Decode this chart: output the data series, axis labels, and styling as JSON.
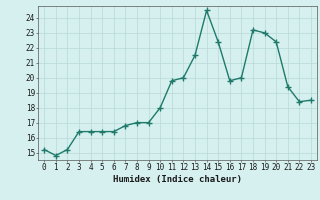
{
  "x": [
    0,
    1,
    2,
    3,
    4,
    5,
    6,
    7,
    8,
    9,
    10,
    11,
    12,
    13,
    14,
    15,
    16,
    17,
    18,
    19,
    20,
    21,
    22,
    23
  ],
  "y": [
    15.2,
    14.8,
    15.2,
    16.4,
    16.4,
    16.4,
    16.4,
    16.8,
    17.0,
    17.0,
    18.0,
    19.8,
    20.0,
    21.5,
    24.5,
    22.4,
    19.8,
    20.0,
    23.2,
    23.0,
    22.4,
    19.4,
    18.4,
    18.5
  ],
  "line_color": "#1f7a6a",
  "marker": "+",
  "marker_size": 4,
  "marker_linewidth": 1.0,
  "bg_color": "#d6f0f0",
  "grid_color": "#b8d8d8",
  "xlabel": "Humidex (Indice chaleur)",
  "ylabel_ticks": [
    15,
    16,
    17,
    18,
    19,
    20,
    21,
    22,
    23,
    24
  ],
  "xlim": [
    -0.5,
    23.5
  ],
  "ylim": [
    14.5,
    24.8
  ],
  "fig_bg_color": "#d6f0f0",
  "xlabel_fontsize": 6.5,
  "tick_fontsize": 5.5,
  "linewidth": 1.0
}
